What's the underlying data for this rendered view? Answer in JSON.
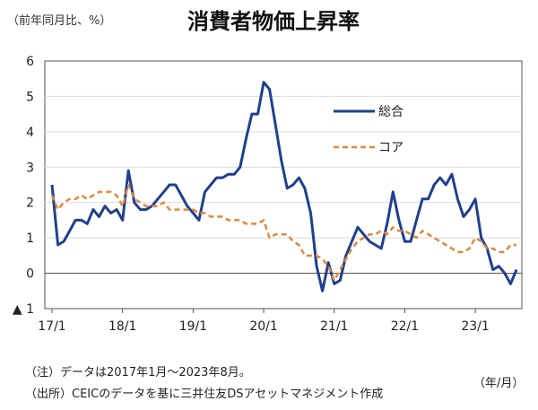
{
  "header": {
    "unit": "（前年同月比、%）"
  },
  "footer": {
    "note": "（注）データは2017年1月～2023年8月。",
    "source": "（出所）CEICのデータを基に三井住友DSアセットマネジメント作成",
    "x_unit": "（年/月）"
  },
  "chart_data": {
    "type": "line",
    "title": "消費者物価上昇率",
    "ylabel": "（前年同月比、%）",
    "xlabel": "（年/月）",
    "ylim": [
      -1,
      6
    ],
    "yticks": [
      {
        "value": 6,
        "label": "6"
      },
      {
        "value": 5,
        "label": "5"
      },
      {
        "value": 4,
        "label": "4"
      },
      {
        "value": 3,
        "label": "3"
      },
      {
        "value": 2,
        "label": "2"
      },
      {
        "value": 1,
        "label": "1"
      },
      {
        "value": 0,
        "label": "0"
      },
      {
        "value": -1,
        "label": "▲ 1"
      }
    ],
    "x_start": "2017-01",
    "n_months": 80,
    "xticks": [
      {
        "index": 0,
        "label": "17/1"
      },
      {
        "index": 12,
        "label": "18/1"
      },
      {
        "index": 24,
        "label": "19/1"
      },
      {
        "index": 36,
        "label": "20/1"
      },
      {
        "index": 48,
        "label": "21/1"
      },
      {
        "index": 60,
        "label": "22/1"
      },
      {
        "index": 72,
        "label": "23/1"
      }
    ],
    "grid": true,
    "legend": "inside upper-right",
    "series": [
      {
        "name": "総合",
        "color": "#1f3f8f",
        "style": "solid",
        "values": [
          2.5,
          0.8,
          0.9,
          1.2,
          1.5,
          1.5,
          1.4,
          1.8,
          1.6,
          1.9,
          1.7,
          1.8,
          1.5,
          2.9,
          2.0,
          1.8,
          1.8,
          1.9,
          2.1,
          2.3,
          2.5,
          2.5,
          2.2,
          1.9,
          1.7,
          1.5,
          2.3,
          2.5,
          2.7,
          2.7,
          2.8,
          2.8,
          3.0,
          3.8,
          4.5,
          4.5,
          5.4,
          5.2,
          4.2,
          3.2,
          2.4,
          2.5,
          2.7,
          2.4,
          1.7,
          0.2,
          -0.5,
          0.3,
          -0.3,
          -0.2,
          0.5,
          0.9,
          1.3,
          1.1,
          0.9,
          0.8,
          0.7,
          1.4,
          2.3,
          1.5,
          0.9,
          0.9,
          1.5,
          2.1,
          2.1,
          2.5,
          2.7,
          2.5,
          2.8,
          2.1,
          1.6,
          1.8,
          2.1,
          1.0,
          0.7,
          0.1,
          0.2,
          0.0,
          -0.3,
          0.1
        ]
      },
      {
        "name": "コア",
        "color": "#e08a3c",
        "style": "dashed",
        "values": [
          2.2,
          1.8,
          2.0,
          2.1,
          2.1,
          2.2,
          2.1,
          2.2,
          2.3,
          2.3,
          2.3,
          2.2,
          1.9,
          2.5,
          2.1,
          2.0,
          1.9,
          1.9,
          1.9,
          2.0,
          1.8,
          1.8,
          1.8,
          1.8,
          1.8,
          1.7,
          1.7,
          1.6,
          1.6,
          1.6,
          1.5,
          1.5,
          1.5,
          1.4,
          1.4,
          1.4,
          1.5,
          1.0,
          1.1,
          1.1,
          1.1,
          0.9,
          0.8,
          0.5,
          0.5,
          0.5,
          0.4,
          0.2,
          -0.2,
          0.1,
          0.4,
          0.7,
          0.9,
          1.0,
          1.1,
          1.1,
          1.2,
          1.1,
          1.3,
          1.2,
          1.2,
          1.1,
          1.0,
          1.2,
          1.1,
          1.0,
          0.9,
          0.8,
          0.7,
          0.6,
          0.6,
          0.7,
          1.0,
          0.9,
          0.7,
          0.7,
          0.6,
          0.6,
          0.8,
          0.8
        ]
      }
    ]
  }
}
